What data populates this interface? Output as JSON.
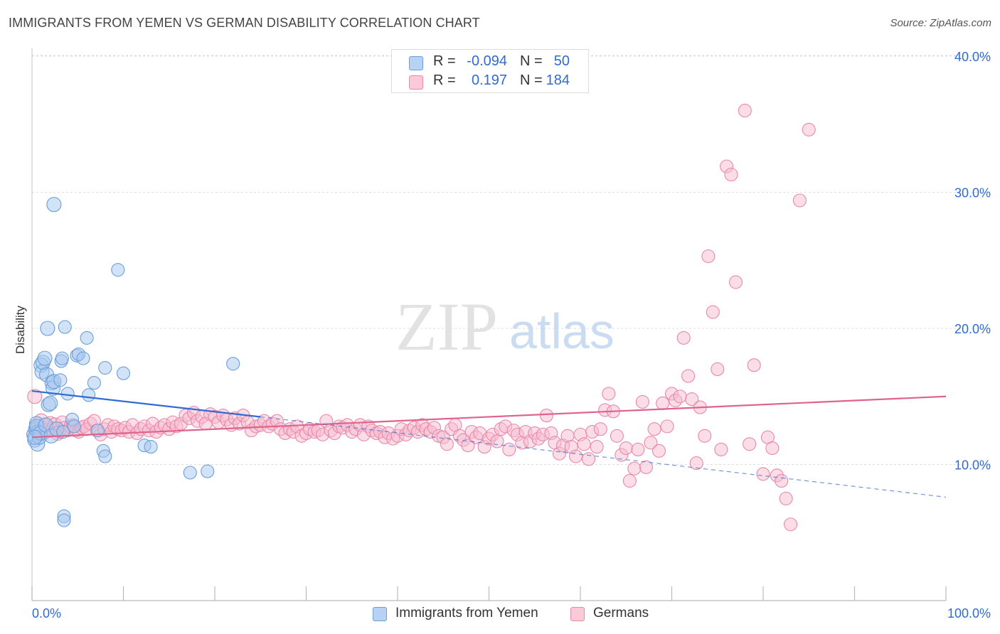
{
  "header": {
    "title": "IMMIGRANTS FROM YEMEN VS GERMAN DISABILITY CORRELATION CHART",
    "source": "Source: ZipAtlas.com"
  },
  "watermark": {
    "zip": "ZIP",
    "atlas": "atlas"
  },
  "legend_top": {
    "rows": [
      {
        "r_label": "R =",
        "r_value": "-0.094",
        "n_label": "N =",
        "n_value": "50"
      },
      {
        "r_label": "R =",
        "r_value": "0.197",
        "n_label": "N =",
        "n_value": "184"
      }
    ]
  },
  "legend_bottom": {
    "items": [
      {
        "label": "Immigrants from Yemen"
      },
      {
        "label": "Germans"
      }
    ]
  },
  "colors": {
    "yemen_fill": "#a8c8f0",
    "yemen_stroke": "#6a9fd8",
    "yemen_line": "#2f6bd1",
    "germans_fill": "#f8bcd0",
    "germans_stroke": "#e889a9",
    "germans_line": "#e0628e",
    "tick_label": "#2f6bd1",
    "grid": "#dddddd"
  },
  "chart_data": {
    "type": "scatter",
    "title": "IMMIGRANTS FROM YEMEN VS GERMAN DISABILITY CORRELATION CHART",
    "xlabel": "",
    "ylabel": "Disability",
    "xlim": [
      0,
      100
    ],
    "ylim": [
      0,
      40
    ],
    "x_tick_labels": [
      "0.0%",
      "100.0%"
    ],
    "y_ticks": [
      10,
      20,
      30,
      40
    ],
    "y_tick_labels": [
      "10.0%",
      "20.0%",
      "30.0%",
      "40.0%"
    ],
    "grid": true,
    "series": [
      {
        "name": "Immigrants from Yemen",
        "r": -0.094,
        "n": 50,
        "trend": {
          "x": [
            0,
            25
          ],
          "y": [
            15.4,
            13.5
          ]
        },
        "trend_dashed": {
          "x": [
            25,
            100
          ],
          "y": [
            13.5,
            7.6
          ]
        },
        "points": [
          [
            0.2,
            12.2
          ],
          [
            0.3,
            11.8
          ],
          [
            0.4,
            12.6
          ],
          [
            0.5,
            13.0
          ],
          [
            0.6,
            11.5
          ],
          [
            0.7,
            12.4
          ],
          [
            0.8,
            12.0
          ],
          [
            0.5,
            12.8
          ],
          [
            0.9,
            12.3
          ],
          [
            1.0,
            17.3
          ],
          [
            1.1,
            16.8
          ],
          [
            1.2,
            17.5
          ],
          [
            1.4,
            17.8
          ],
          [
            1.5,
            12.9
          ],
          [
            1.6,
            16.6
          ],
          [
            1.7,
            20.0
          ],
          [
            1.8,
            14.4
          ],
          [
            2.0,
            14.5
          ],
          [
            2.1,
            12.1
          ],
          [
            2.2,
            16.0
          ],
          [
            2.3,
            15.6
          ],
          [
            2.4,
            16.1
          ],
          [
            2.4,
            29.1
          ],
          [
            2.7,
            12.6
          ],
          [
            3.1,
            16.2
          ],
          [
            3.2,
            17.6
          ],
          [
            3.3,
            17.8
          ],
          [
            3.4,
            12.4
          ],
          [
            3.5,
            6.2
          ],
          [
            3.5,
            5.9
          ],
          [
            3.6,
            20.1
          ],
          [
            3.9,
            15.2
          ],
          [
            4.4,
            13.3
          ],
          [
            4.6,
            12.8
          ],
          [
            4.9,
            18.0
          ],
          [
            5.1,
            18.1
          ],
          [
            5.6,
            17.8
          ],
          [
            6.0,
            19.3
          ],
          [
            6.2,
            15.1
          ],
          [
            6.8,
            16.0
          ],
          [
            7.2,
            12.5
          ],
          [
            7.8,
            11.0
          ],
          [
            8.0,
            10.6
          ],
          [
            8.0,
            17.1
          ],
          [
            9.4,
            24.3
          ],
          [
            10.0,
            16.7
          ],
          [
            12.3,
            11.4
          ],
          [
            13.0,
            11.3
          ],
          [
            17.3,
            9.4
          ],
          [
            19.2,
            9.5
          ],
          [
            22.0,
            17.4
          ],
          [
            0.3,
            12.0
          ]
        ]
      },
      {
        "name": "Germans",
        "r": 0.197,
        "n": 184,
        "trend": {
          "x": [
            0,
            100
          ],
          "y": [
            12.0,
            15.0
          ]
        },
        "points": [
          [
            0.3,
            15.0
          ],
          [
            0.5,
            12.5
          ],
          [
            0.8,
            12.8
          ],
          [
            1.0,
            13.2
          ],
          [
            1.2,
            12.3
          ],
          [
            1.5,
            12.9
          ],
          [
            1.8,
            12.5
          ],
          [
            2.0,
            13.0
          ],
          [
            2.3,
            12.6
          ],
          [
            2.5,
            12.9
          ],
          [
            2.8,
            12.3
          ],
          [
            3.0,
            12.4
          ],
          [
            3.3,
            13.1
          ],
          [
            3.6,
            12.7
          ],
          [
            3.9,
            12.5
          ],
          [
            4.2,
            12.8
          ],
          [
            4.5,
            12.9
          ],
          [
            4.8,
            12.5
          ],
          [
            5.1,
            12.4
          ],
          [
            5.4,
            12.7
          ],
          [
            5.7,
            12.8
          ],
          [
            6.0,
            12.6
          ],
          [
            6.4,
            13.0
          ],
          [
            6.8,
            13.2
          ],
          [
            7.1,
            12.5
          ],
          [
            7.5,
            12.2
          ],
          [
            7.9,
            12.6
          ],
          [
            8.3,
            12.9
          ],
          [
            8.7,
            12.4
          ],
          [
            9.0,
            12.8
          ],
          [
            9.4,
            12.6
          ],
          [
            9.8,
            12.5
          ],
          [
            10.2,
            12.7
          ],
          [
            10.6,
            12.4
          ],
          [
            11.0,
            12.9
          ],
          [
            11.5,
            12.3
          ],
          [
            11.9,
            12.6
          ],
          [
            12.3,
            12.8
          ],
          [
            12.8,
            12.5
          ],
          [
            13.2,
            13.0
          ],
          [
            13.6,
            12.4
          ],
          [
            14.1,
            12.7
          ],
          [
            14.5,
            12.9
          ],
          [
            15.0,
            12.6
          ],
          [
            15.4,
            13.1
          ],
          [
            15.8,
            12.8
          ],
          [
            16.3,
            13.0
          ],
          [
            16.8,
            13.6
          ],
          [
            17.2,
            13.4
          ],
          [
            17.7,
            13.8
          ],
          [
            18.1,
            13.2
          ],
          [
            18.6,
            13.5
          ],
          [
            19.0,
            13.0
          ],
          [
            19.5,
            13.7
          ],
          [
            20.0,
            13.5
          ],
          [
            20.4,
            13.1
          ],
          [
            20.9,
            13.6
          ],
          [
            21.3,
            13.3
          ],
          [
            21.8,
            12.9
          ],
          [
            22.2,
            13.4
          ],
          [
            22.7,
            13.0
          ],
          [
            23.1,
            13.6
          ],
          [
            23.6,
            13.1
          ],
          [
            24.0,
            12.5
          ],
          [
            24.5,
            12.8
          ],
          [
            25.0,
            12.9
          ],
          [
            25.4,
            13.2
          ],
          [
            25.9,
            12.8
          ],
          [
            26.3,
            13.0
          ],
          [
            26.8,
            13.2
          ],
          [
            27.2,
            12.6
          ],
          [
            27.7,
            12.3
          ],
          [
            28.2,
            12.6
          ],
          [
            28.6,
            12.4
          ],
          [
            29.0,
            12.8
          ],
          [
            29.5,
            12.1
          ],
          [
            30.0,
            12.3
          ],
          [
            30.4,
            12.6
          ],
          [
            30.9,
            12.4
          ],
          [
            31.3,
            12.5
          ],
          [
            31.8,
            12.2
          ],
          [
            32.2,
            13.2
          ],
          [
            32.7,
            12.5
          ],
          [
            33.1,
            12.3
          ],
          [
            33.6,
            12.8
          ],
          [
            34.0,
            12.7
          ],
          [
            34.5,
            12.9
          ],
          [
            35.0,
            12.4
          ],
          [
            35.4,
            12.6
          ],
          [
            35.9,
            12.9
          ],
          [
            36.3,
            12.2
          ],
          [
            36.8,
            12.8
          ],
          [
            37.2,
            12.5
          ],
          [
            37.7,
            12.3
          ],
          [
            38.1,
            12.4
          ],
          [
            38.6,
            12.0
          ],
          [
            39.0,
            12.3
          ],
          [
            39.5,
            11.9
          ],
          [
            40.0,
            12.1
          ],
          [
            40.4,
            12.6
          ],
          [
            40.9,
            12.2
          ],
          [
            41.3,
            12.5
          ],
          [
            41.8,
            12.7
          ],
          [
            42.2,
            12.4
          ],
          [
            42.7,
            12.9
          ],
          [
            43.1,
            12.6
          ],
          [
            43.6,
            12.4
          ],
          [
            44.0,
            12.7
          ],
          [
            44.5,
            12.1
          ],
          [
            45.0,
            12.0
          ],
          [
            45.4,
            11.5
          ],
          [
            45.9,
            12.6
          ],
          [
            46.3,
            12.9
          ],
          [
            46.8,
            12.1
          ],
          [
            47.2,
            11.8
          ],
          [
            47.7,
            11.4
          ],
          [
            48.1,
            12.4
          ],
          [
            48.6,
            12.0
          ],
          [
            49.0,
            12.3
          ],
          [
            49.5,
            11.3
          ],
          [
            50.0,
            11.9
          ],
          [
            50.4,
            12.2
          ],
          [
            50.9,
            11.7
          ],
          [
            51.3,
            12.6
          ],
          [
            51.8,
            12.8
          ],
          [
            52.2,
            11.1
          ],
          [
            52.7,
            12.5
          ],
          [
            53.1,
            12.2
          ],
          [
            53.6,
            11.6
          ],
          [
            54.0,
            12.4
          ],
          [
            54.5,
            11.7
          ],
          [
            55.0,
            12.3
          ],
          [
            55.4,
            11.9
          ],
          [
            55.9,
            12.2
          ],
          [
            56.3,
            13.6
          ],
          [
            56.8,
            12.3
          ],
          [
            57.2,
            11.6
          ],
          [
            57.7,
            10.8
          ],
          [
            58.1,
            11.4
          ],
          [
            58.6,
            12.1
          ],
          [
            59.0,
            11.3
          ],
          [
            59.5,
            10.6
          ],
          [
            60.0,
            12.2
          ],
          [
            60.4,
            11.5
          ],
          [
            60.9,
            10.4
          ],
          [
            61.3,
            12.4
          ],
          [
            61.8,
            11.3
          ],
          [
            62.2,
            12.6
          ],
          [
            62.7,
            14.0
          ],
          [
            63.1,
            15.2
          ],
          [
            63.6,
            13.9
          ],
          [
            64.0,
            12.1
          ],
          [
            64.5,
            10.7
          ],
          [
            65.0,
            11.2
          ],
          [
            65.4,
            8.8
          ],
          [
            65.9,
            9.7
          ],
          [
            66.3,
            11.1
          ],
          [
            66.8,
            14.6
          ],
          [
            67.2,
            9.8
          ],
          [
            67.7,
            11.6
          ],
          [
            68.1,
            12.6
          ],
          [
            68.6,
            11.0
          ],
          [
            69.0,
            14.5
          ],
          [
            69.5,
            12.8
          ],
          [
            70.0,
            15.2
          ],
          [
            70.4,
            14.7
          ],
          [
            70.9,
            15.0
          ],
          [
            71.3,
            19.3
          ],
          [
            71.8,
            16.5
          ],
          [
            72.2,
            14.8
          ],
          [
            72.7,
            10.1
          ],
          [
            73.1,
            14.2
          ],
          [
            73.6,
            12.1
          ],
          [
            74.0,
            25.3
          ],
          [
            74.5,
            21.2
          ],
          [
            75.0,
            17.0
          ],
          [
            75.4,
            11.1
          ],
          [
            76.0,
            31.9
          ],
          [
            76.5,
            31.3
          ],
          [
            77.0,
            23.4
          ],
          [
            78.0,
            36.0
          ],
          [
            79.0,
            17.3
          ],
          [
            80.0,
            9.3
          ],
          [
            80.5,
            12.0
          ],
          [
            81.5,
            9.2
          ],
          [
            82.0,
            8.8
          ],
          [
            82.5,
            7.5
          ],
          [
            83.0,
            5.6
          ],
          [
            84.0,
            29.4
          ],
          [
            85.0,
            34.6
          ],
          [
            78.5,
            11.5
          ],
          [
            81.0,
            11.2
          ]
        ]
      }
    ]
  }
}
